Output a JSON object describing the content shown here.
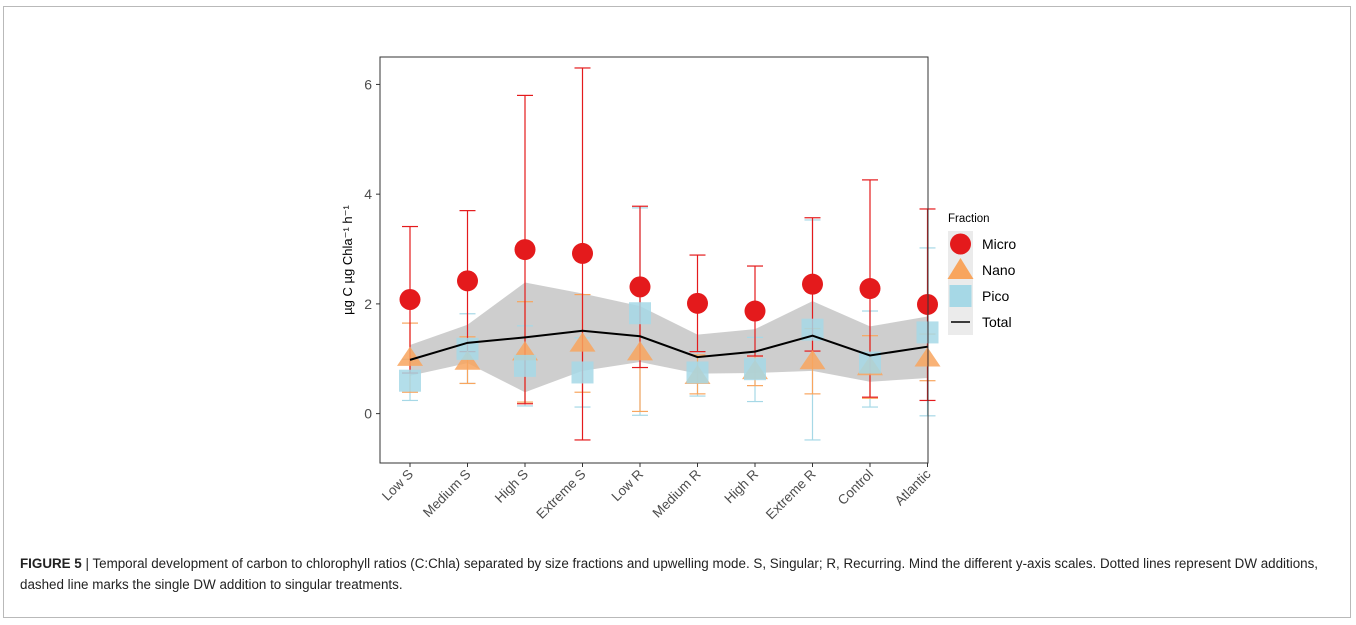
{
  "caption": {
    "label": "FIGURE 5",
    "text": " | Temporal development of carbon to chlorophyll ratios (C:Chla) separated by size fractions and upwelling mode. S, Singular; R, Recurring. Mind the different y-axis scales. Dotted lines represent DW additions, dashed line marks the single DW addition to singular treatments."
  },
  "chart_data": {
    "type": "scatter",
    "categories": [
      "Low S",
      "Medium S",
      "High S",
      "Extreme S",
      "Low R",
      "Medium R",
      "High R",
      "Extreme R",
      "Control",
      "Atlantic"
    ],
    "ylabel": "µg C µg Chla⁻¹ h⁻¹",
    "ylim": [
      -0.9,
      6.5
    ],
    "yticks": [
      0,
      2,
      4,
      6
    ],
    "grid": false,
    "legend": {
      "title": "Fraction",
      "position": "right"
    },
    "series": [
      {
        "name": "Micro",
        "marker": "circle",
        "color": "#e41a1c",
        "values": [
          2.08,
          2.42,
          2.99,
          2.92,
          2.31,
          2.01,
          1.87,
          2.36,
          2.28,
          1.99
        ],
        "upper": [
          3.41,
          3.7,
          5.8,
          6.3,
          3.78,
          2.89,
          2.69,
          3.57,
          4.26,
          3.73
        ],
        "lower": [
          0.74,
          1.13,
          0.18,
          -0.48,
          0.84,
          1.13,
          1.05,
          1.14,
          0.3,
          0.24
        ]
      },
      {
        "name": "Nano",
        "marker": "triangle",
        "color": "#f8a55e",
        "values": [
          1.02,
          0.95,
          1.12,
          1.28,
          1.12,
          0.69,
          0.78,
          0.96,
          0.85,
          1.01
        ],
        "upper": [
          1.65,
          1.4,
          2.04,
          2.17,
          2.2,
          1.07,
          1.05,
          1.55,
          1.42,
          1.45
        ],
        "lower": [
          0.39,
          0.55,
          0.21,
          0.39,
          0.04,
          0.36,
          0.51,
          0.36,
          0.28,
          0.6
        ]
      },
      {
        "name": "Pico",
        "marker": "square",
        "color": "#a6d8e6",
        "values": [
          0.6,
          1.18,
          0.87,
          0.75,
          1.83,
          0.75,
          0.81,
          1.53,
          0.93,
          1.48
        ],
        "upper": [
          0.99,
          1.82,
          1.6,
          1.38,
          3.75,
          1.14,
          1.39,
          3.53,
          1.87,
          3.02
        ],
        "lower": [
          0.24,
          0.55,
          0.14,
          0.12,
          -0.03,
          0.32,
          0.22,
          -0.48,
          0.12,
          -0.04
        ]
      },
      {
        "name": "Total",
        "marker": "line",
        "color": "#000000",
        "values": [
          0.98,
          1.29,
          1.39,
          1.51,
          1.41,
          1.03,
          1.13,
          1.42,
          1.06,
          1.22
        ],
        "upper": [
          1.25,
          1.62,
          2.39,
          2.19,
          1.96,
          1.44,
          1.54,
          2.05,
          1.59,
          1.77
        ],
        "lower": [
          0.69,
          0.92,
          0.39,
          0.78,
          0.94,
          0.73,
          0.74,
          0.78,
          0.58,
          0.65
        ]
      }
    ]
  }
}
